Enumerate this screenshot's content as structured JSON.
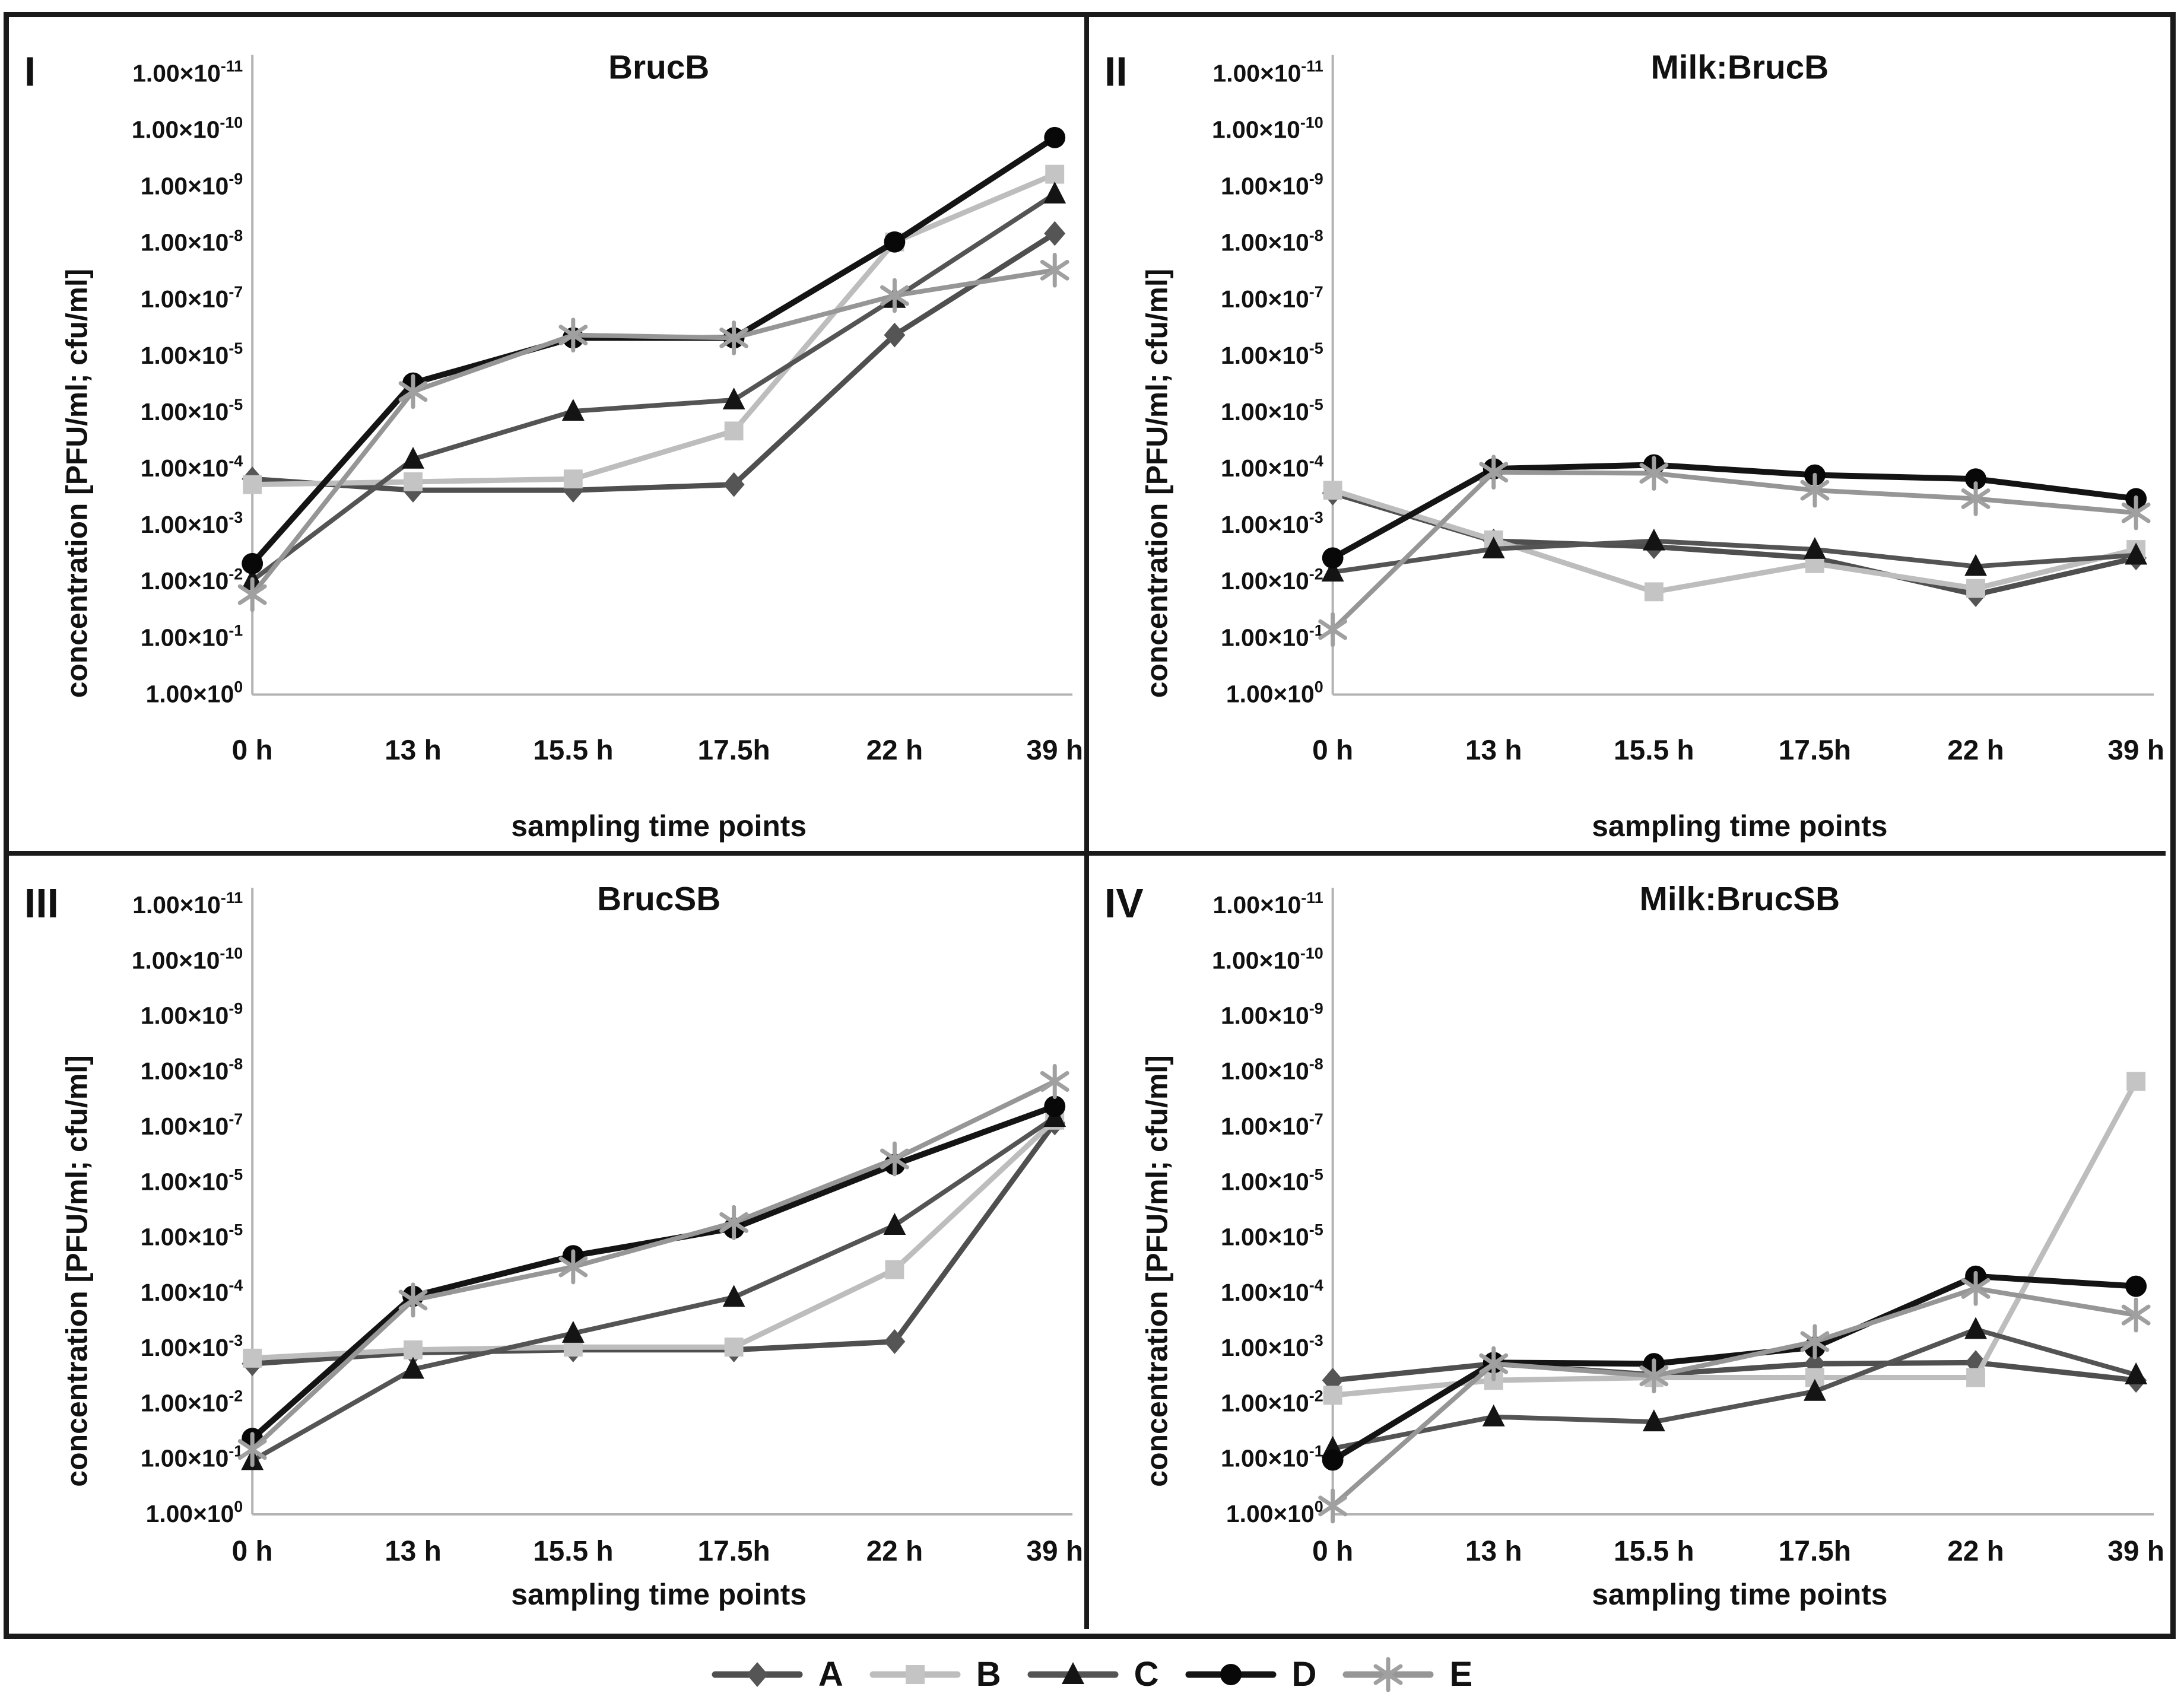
{
  "figure": {
    "type_note": "four-panel line figure",
    "legend": [
      {
        "label": "A",
        "marker": "diamond",
        "marker_color": "#555555",
        "line_color": "#4f4f4f"
      },
      {
        "label": "B",
        "marker": "square",
        "marker_color": "#c4c4c4",
        "line_color": "#bdbdbd"
      },
      {
        "label": "C",
        "marker": "triangle",
        "marker_color": "#141414",
        "line_color": "#545454"
      },
      {
        "label": "D",
        "marker": "circle",
        "marker_color": "#080808",
        "line_color": "#141414"
      },
      {
        "label": "E",
        "marker": "asterisk",
        "marker_color": "#a0a0a0",
        "line_color": "#969696"
      }
    ]
  },
  "chart_data": {
    "type": "line",
    "x_categories": [
      "0 h",
      "13 h",
      "15.5 h",
      "17.5h",
      "22 h",
      "39 h"
    ],
    "xlabel": "sampling time points",
    "ylabel": "concentration [PFU/ml; cfu/ml]",
    "y_tick_base": "1.00×10",
    "y_tick_exponents_top_to_bottom": [
      "-11",
      "-10",
      "-9",
      "-8",
      "-7",
      "-5",
      "-5",
      "-4",
      "-3",
      "-2",
      "-1",
      "0"
    ],
    "y_value_unit": "axis tick index: 0 = 1.00x10^0 (bottom axis line) up to 11 = 1.00x10^-11 (top); values estimated from marker positions",
    "axis_color": "#b3b3b3",
    "grid": "off",
    "legend_position": "bottom-center",
    "panels": [
      {
        "numeral": "I",
        "title": "BrucB",
        "series": [
          {
            "name": "A",
            "values": [
              3.8,
              3.6,
              3.6,
              3.7,
              6.35,
              8.15
            ]
          },
          {
            "name": "B",
            "values": [
              3.7,
              3.75,
              3.8,
              4.65,
              8.0,
              9.2
            ]
          },
          {
            "name": "C",
            "values": [
              2.0,
              4.15,
              5.0,
              5.2,
              7.0,
              8.85
            ]
          },
          {
            "name": "D",
            "values": [
              2.3,
              5.5,
              6.3,
              6.3,
              8.0,
              9.85
            ]
          },
          {
            "name": "E",
            "values": [
              1.75,
              5.35,
              6.35,
              6.3,
              7.05,
              7.5
            ]
          }
        ]
      },
      {
        "numeral": "II",
        "title": "Milk:BrucB",
        "series": [
          {
            "name": "A",
            "values": [
              3.55,
              2.7,
              2.6,
              2.4,
              1.75,
              2.4
            ]
          },
          {
            "name": "B",
            "values": [
              3.6,
              2.72,
              1.8,
              2.3,
              1.86,
              2.55
            ]
          },
          {
            "name": "C",
            "values": [
              2.15,
              2.56,
              2.7,
              2.55,
              2.25,
              2.45
            ]
          },
          {
            "name": "D",
            "values": [
              2.4,
              3.98,
              4.05,
              3.87,
              3.8,
              3.45
            ]
          },
          {
            "name": "E",
            "values": [
              1.13,
              3.92,
              3.9,
              3.6,
              3.45,
              3.2
            ]
          }
        ]
      },
      {
        "numeral": "III",
        "title": "BrucSB",
        "series": [
          {
            "name": "A",
            "values": [
              2.7,
              2.9,
              2.95,
              2.95,
              3.1,
              7.05
            ]
          },
          {
            "name": "B",
            "values": [
              2.8,
              2.95,
              3.0,
              3.0,
              4.4,
              7.1
            ]
          },
          {
            "name": "C",
            "values": [
              0.95,
              2.6,
              3.25,
              3.9,
              5.2,
              7.15
            ]
          },
          {
            "name": "D",
            "values": [
              1.35,
              3.92,
              4.65,
              5.15,
              6.3,
              7.35
            ]
          },
          {
            "name": "E",
            "values": [
              1.15,
              3.85,
              4.45,
              5.25,
              6.4,
              7.8
            ]
          }
        ]
      },
      {
        "numeral": "IV",
        "title": "Milk:BrucSB",
        "series": [
          {
            "name": "A",
            "values": [
              2.4,
              2.7,
              2.5,
              2.7,
              2.72,
              2.4
            ]
          },
          {
            "name": "B",
            "values": [
              2.13,
              2.4,
              2.45,
              2.45,
              2.45,
              7.8
            ]
          },
          {
            "name": "C",
            "values": [
              1.17,
              1.74,
              1.65,
              2.2,
              3.32,
              2.5
            ]
          },
          {
            "name": "D",
            "values": [
              0.96,
              2.72,
              2.7,
              3.0,
              4.28,
              4.1
            ]
          },
          {
            "name": "E",
            "values": [
              0.13,
              2.7,
              2.48,
              3.1,
              4.06,
              3.58
            ]
          }
        ]
      }
    ]
  }
}
